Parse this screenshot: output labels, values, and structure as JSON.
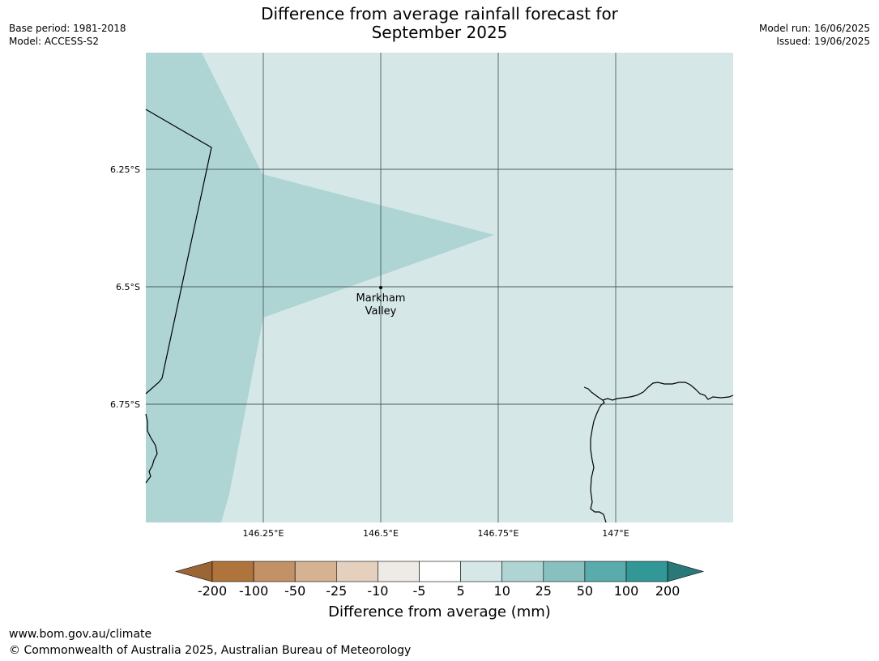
{
  "title": {
    "line1": "Difference from average rainfall forecast for",
    "line2": "September 2025"
  },
  "meta": {
    "base_period": "Base period: 1981-2018",
    "model": "Model: ACCESS-S2",
    "model_run": "Model run: 16/06/2025",
    "issued": "Issued: 19/06/2025"
  },
  "map": {
    "colors": {
      "band_5_10": "#d5e8e7",
      "band_10_25": "#aed4d4",
      "gridline": "#4a5e5e",
      "coastline": "#000000"
    },
    "lat_labels": [
      "6.25°S",
      "6.5°S",
      "6.75°S"
    ],
    "lon_labels": [
      "146.25°E",
      "146.5°E",
      "146.75°E",
      "147°E"
    ],
    "place": {
      "line1": "Markham",
      "line2": "Valley"
    }
  },
  "colorbar": {
    "title": "Difference from average (mm)",
    "tick_labels": [
      "-200",
      "-100",
      "-50",
      "-25",
      "-10",
      "-5",
      "5",
      "10",
      "25",
      "50",
      "100",
      "200"
    ],
    "colors": [
      "#9b6535",
      "#af743c",
      "#c29165",
      "#d4b292",
      "#e4d0bd",
      "#eeebe7",
      "#ffffff",
      "#d5e8e7",
      "#aed4d4",
      "#88bfbf",
      "#5aabab",
      "#319797",
      "#2a7878"
    ]
  },
  "footer": {
    "url": "www.bom.gov.au/climate",
    "copyright": "© Commonwealth of Australia 2025, Australian Bureau of Meteorology"
  }
}
